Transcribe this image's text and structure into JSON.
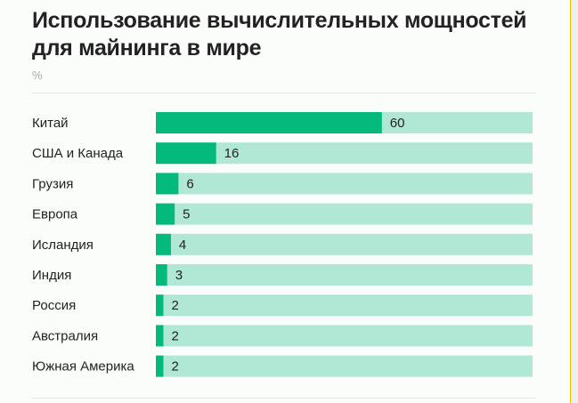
{
  "title": "Использование вычислительных мощностей для майнинга в мире",
  "unit": "%",
  "colors": {
    "bar": "#04b97c",
    "track": "#b0e8d5",
    "text": "#222222"
  },
  "chart_data": {
    "type": "bar",
    "orientation": "horizontal",
    "title": "Использование вычислительных мощностей для майнинга в мире",
    "ylabel": "%",
    "xlim": [
      0,
      100
    ],
    "grid": false,
    "categories": [
      "Китай",
      "США и Канада",
      "Грузия",
      "Европа",
      "Исландия",
      "Индия",
      "Россия",
      "Австралия",
      "Южная Америка"
    ],
    "values": [
      60,
      16,
      6,
      5,
      4,
      3,
      2,
      2,
      2
    ]
  }
}
